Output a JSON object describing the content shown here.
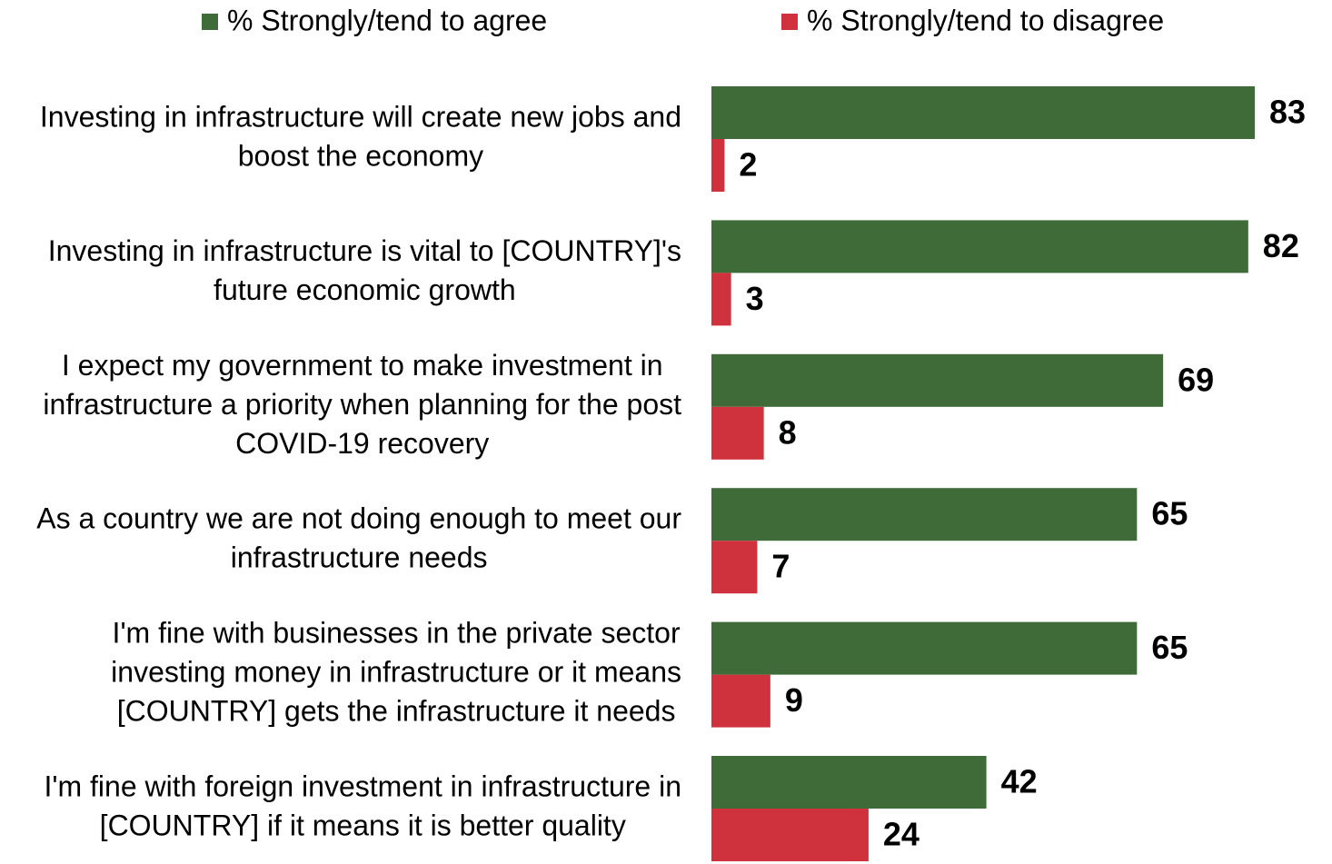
{
  "chart_data": {
    "type": "bar",
    "orientation": "horizontal",
    "categories": [
      "Investing in infrastructure will create new jobs and boost the economy",
      "Investing in infrastructure is vital to [COUNTRY]'s future economic growth",
      "I expect my government to make investment in infrastructure a priority when planning for the post COVID-19 recovery",
      "As a country we are not doing enough to meet our infrastructure needs",
      "I'm fine with businesses in the private sector investing money in infrastructure or it means [COUNTRY] gets the infrastructure it needs",
      "I'm fine with foreign investment in infrastructure in [COUNTRY] if it means it is better quality"
    ],
    "series": [
      {
        "name": "% Strongly/tend to agree",
        "color": "#3e6b37",
        "values": [
          83,
          82,
          69,
          65,
          65,
          42
        ]
      },
      {
        "name": "% Strongly/tend to disagree",
        "color": "#cf323c",
        "values": [
          2,
          3,
          8,
          7,
          9,
          24
        ]
      }
    ],
    "legend": "top"
  }
}
